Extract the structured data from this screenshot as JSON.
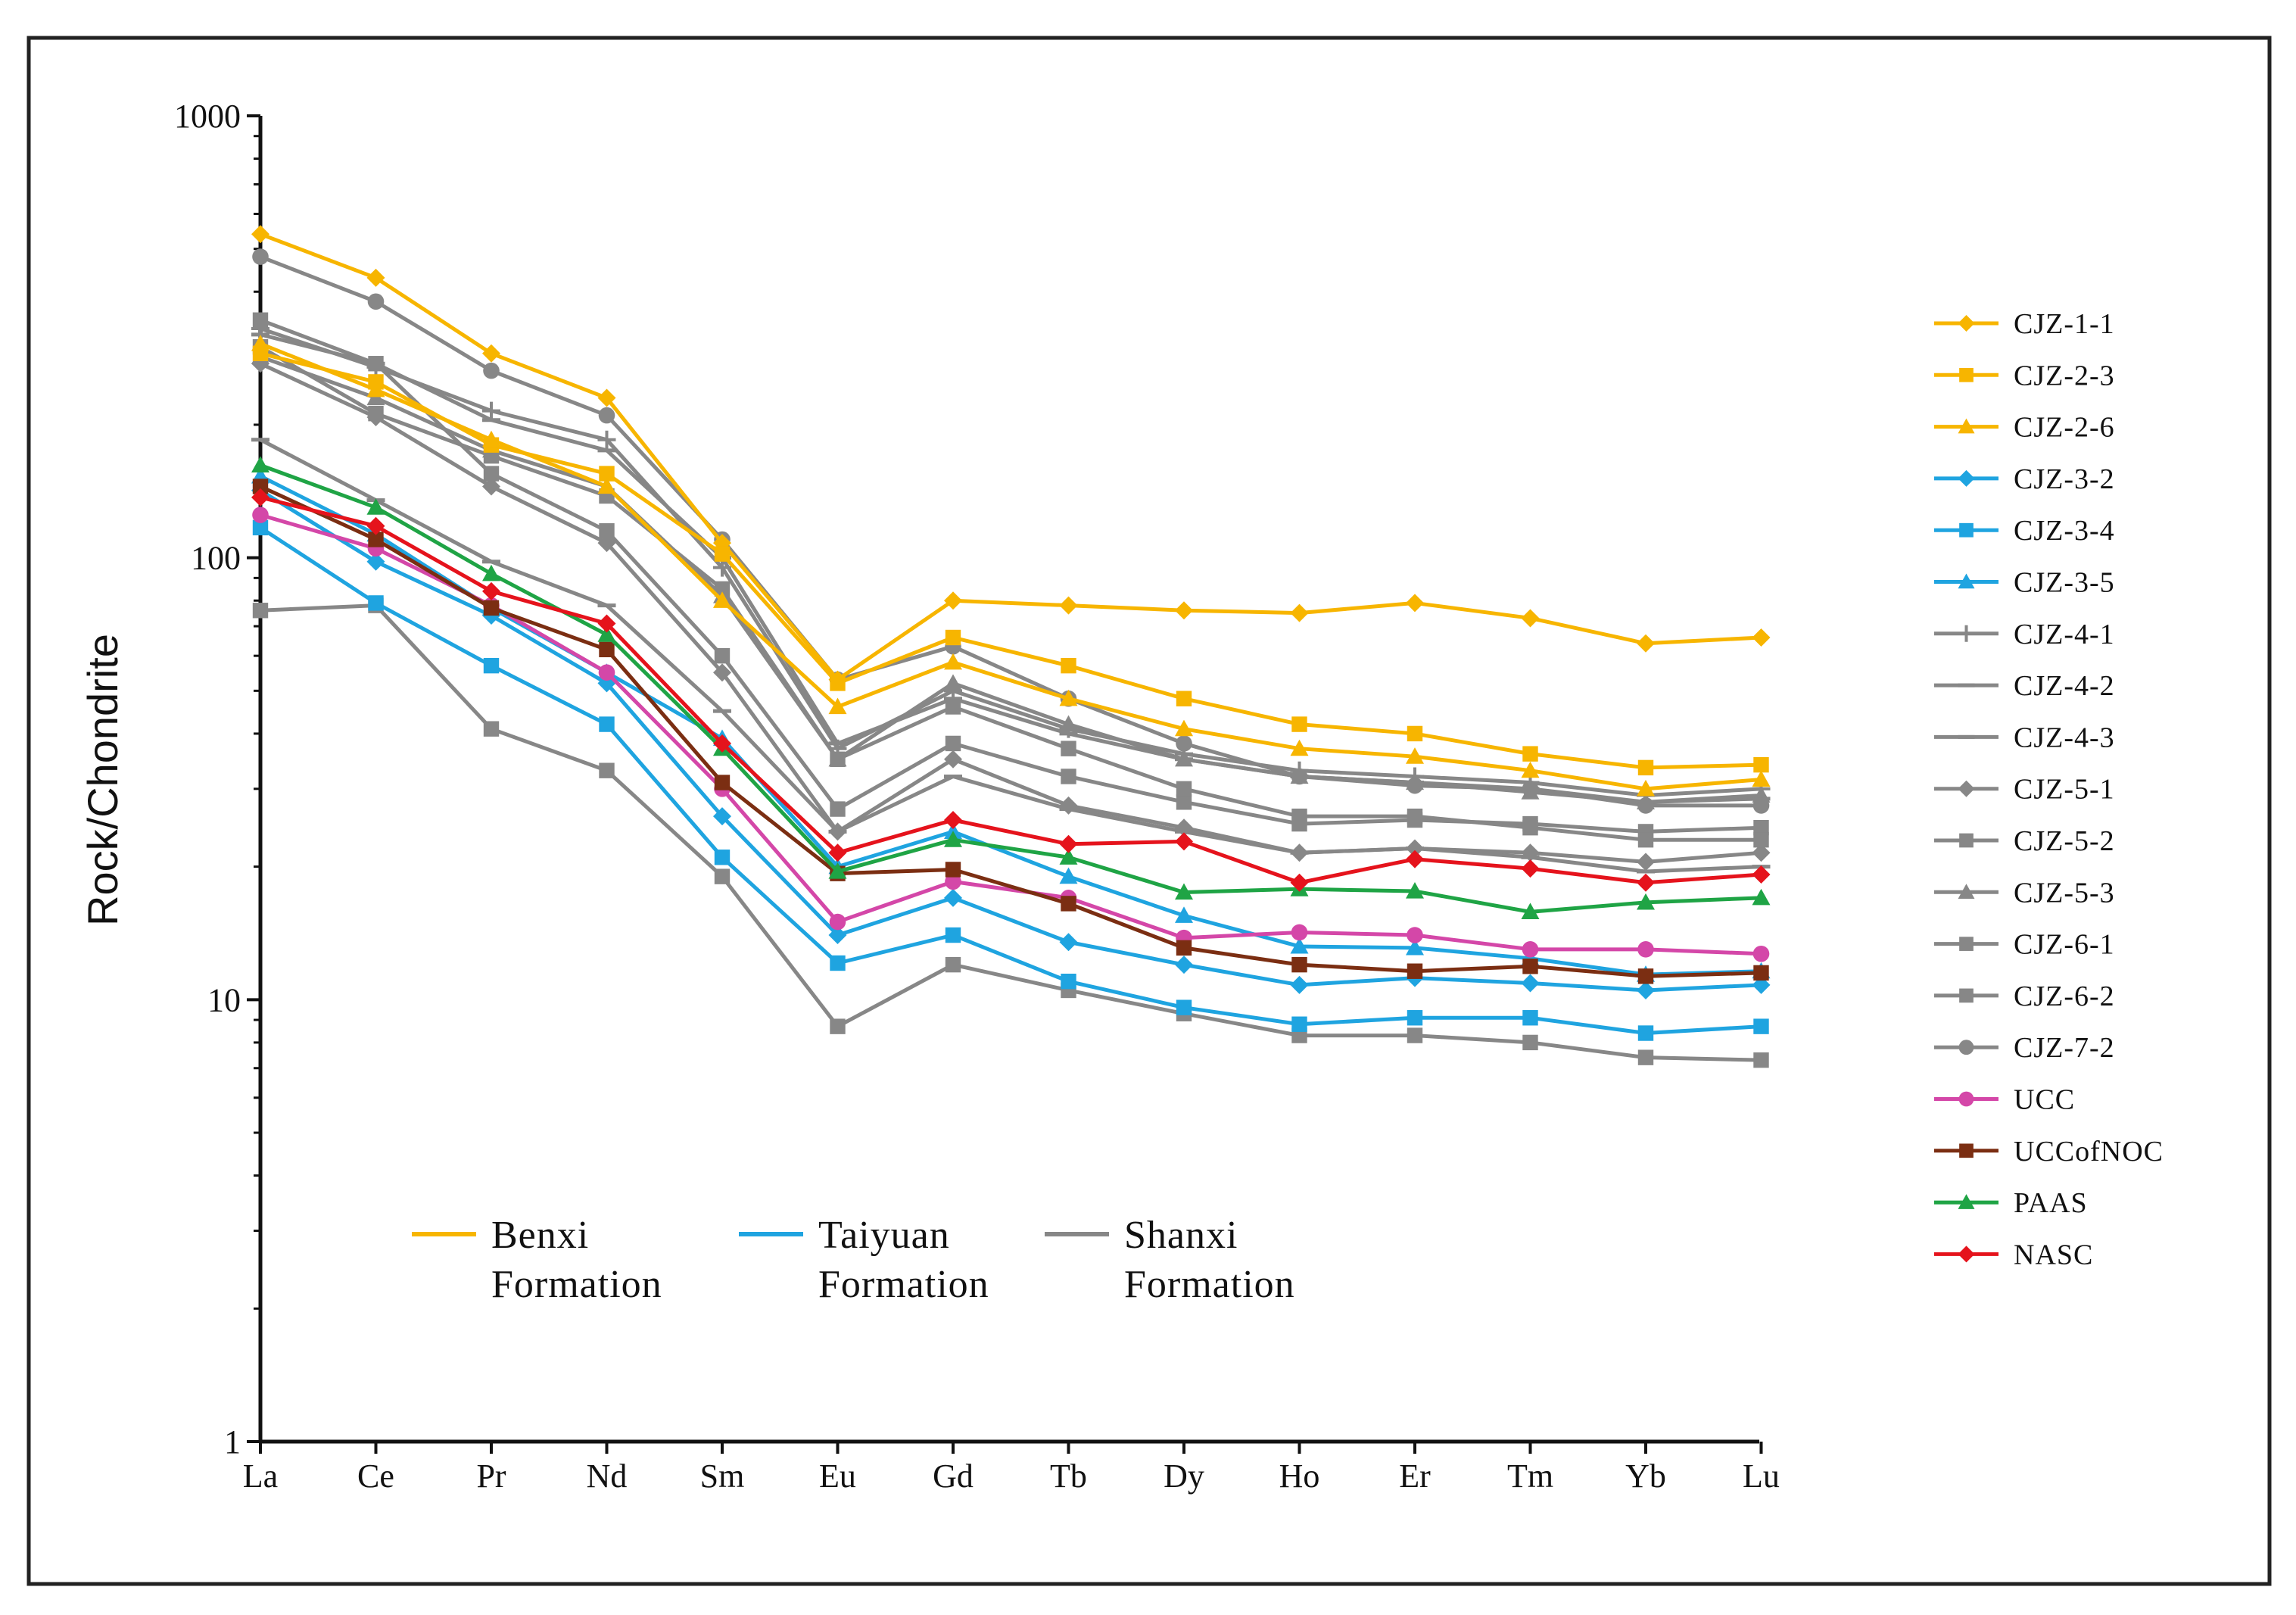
{
  "chart_data": {
    "type": "line",
    "title": "",
    "xlabel": "",
    "ylabel": "Rock/Chondrite",
    "yscale": "log",
    "ylim": [
      1,
      1000
    ],
    "yticks": [
      {
        "value": 1,
        "label": "1"
      },
      {
        "value": 10,
        "label": "10"
      },
      {
        "value": 100,
        "label": "100"
      },
      {
        "value": 1000,
        "label": "1000"
      }
    ],
    "categories": [
      "La",
      "Ce",
      "Pr",
      "Nd",
      "Sm",
      "Eu",
      "Gd",
      "Tb",
      "Dy",
      "Ho",
      "Er",
      "Tm",
      "Yb",
      "Lu"
    ],
    "legend_position": "right",
    "series": [
      {
        "name": "CJZ-1-1",
        "color": "#F7B500",
        "marker": "diamond",
        "values": [
          540,
          430,
          290,
          230,
          108,
          53,
          80,
          78,
          76,
          75,
          79,
          73,
          64,
          66
        ]
      },
      {
        "name": "CJZ-2-3",
        "color": "#F7B500",
        "marker": "square",
        "values": [
          290,
          250,
          180,
          155,
          102,
          52,
          66,
          57,
          48,
          42,
          40,
          36,
          33.5,
          34
        ]
      },
      {
        "name": "CJZ-2-6",
        "color": "#F7B500",
        "marker": "triangle",
        "values": [
          305,
          240,
          185,
          145,
          80,
          46,
          58,
          48,
          41,
          37,
          35.5,
          33,
          30,
          31.5
        ]
      },
      {
        "name": "CJZ-3-2",
        "color": "#1FA4E0",
        "marker": "diamond",
        "values": [
          142,
          98,
          74,
          52,
          26,
          14,
          17,
          13.5,
          12,
          10.8,
          11.2,
          10.9,
          10.5,
          10.8
        ]
      },
      {
        "name": "CJZ-3-4",
        "color": "#1FA4E0",
        "marker": "square",
        "values": [
          117,
          79,
          57,
          42,
          21,
          12.1,
          14,
          11,
          9.6,
          8.8,
          9.1,
          9.1,
          8.4,
          8.7
        ]
      },
      {
        "name": "CJZ-3-5",
        "color": "#1FA4E0",
        "marker": "triangle",
        "values": [
          153,
          113,
          77,
          55,
          39,
          20,
          24,
          19,
          15.5,
          13.2,
          13.1,
          12.4,
          11.4,
          11.6
        ]
      },
      {
        "name": "CJZ-4-1",
        "color": "#878787",
        "marker": "plus",
        "values": [
          330,
          270,
          215,
          185,
          95,
          37,
          50,
          41,
          36,
          33,
          32,
          31,
          29,
          30
        ]
      },
      {
        "name": "CJZ-4-2",
        "color": "#878787",
        "marker": "dash",
        "values": [
          320,
          275,
          205,
          175,
          100,
          38,
          48,
          40,
          35,
          32,
          31,
          30,
          28,
          28.5
        ]
      },
      {
        "name": "CJZ-4-3",
        "color": "#878787",
        "marker": "dash",
        "values": [
          185,
          135,
          98,
          78,
          45,
          24,
          32,
          27,
          24,
          21.5,
          22,
          21,
          19.5,
          20
        ]
      },
      {
        "name": "CJZ-5-1",
        "color": "#878787",
        "marker": "diamond",
        "values": [
          275,
          208,
          145,
          108,
          55,
          24,
          35,
          27.5,
          24.5,
          21.5,
          22,
          21.5,
          20.5,
          21.5
        ]
      },
      {
        "name": "CJZ-5-2",
        "color": "#878787",
        "marker": "square",
        "values": [
          345,
          275,
          155,
          115,
          60,
          27,
          38,
          32,
          28,
          25,
          25.5,
          25,
          24,
          24.5
        ]
      },
      {
        "name": "CJZ-5-3",
        "color": "#878787",
        "marker": "triangle",
        "values": [
          285,
          230,
          175,
          145,
          82,
          35,
          52,
          42,
          35,
          32,
          31,
          29.5,
          28,
          29
        ]
      },
      {
        "name": "CJZ-6-1",
        "color": "#878787",
        "marker": "square",
        "values": [
          300,
          212,
          170,
          138,
          85,
          35,
          46,
          37,
          30,
          26,
          26,
          24.5,
          23,
          23
        ]
      },
      {
        "name": "CJZ-6-2",
        "color": "#878787",
        "marker": "square",
        "values": [
          76,
          78,
          41,
          33,
          19,
          8.7,
          12,
          10.5,
          9.3,
          8.3,
          8.3,
          8,
          7.4,
          7.3
        ]
      },
      {
        "name": "CJZ-7-2",
        "color": "#878787",
        "marker": "circle",
        "values": [
          480,
          380,
          265,
          210,
          110,
          53,
          63,
          48,
          38,
          32,
          30.5,
          30,
          27.5,
          27.5
        ]
      },
      {
        "name": "UCC",
        "color": "#D447A8",
        "marker": "circle",
        "values": [
          125,
          105,
          78,
          55,
          30,
          15,
          18.5,
          17,
          13.8,
          14.2,
          14,
          13,
          13,
          12.7
        ]
      },
      {
        "name": "UCCofNOC",
        "color": "#7B2E12",
        "marker": "square",
        "values": [
          145,
          110,
          77,
          62,
          31,
          19.3,
          19.7,
          16.5,
          13.1,
          12,
          11.6,
          11.9,
          11.3,
          11.5
        ]
      },
      {
        "name": "PAAS",
        "color": "#1FA445",
        "marker": "triangle",
        "values": [
          162,
          130,
          92,
          67,
          37,
          19.5,
          23,
          21,
          17.5,
          17.8,
          17.6,
          15.8,
          16.6,
          17
        ]
      },
      {
        "name": "NASC",
        "color": "#E5131C",
        "marker": "diamond",
        "values": [
          137,
          118,
          84,
          71,
          38,
          21.5,
          25.5,
          22.5,
          22.8,
          18.4,
          20.8,
          19.8,
          18.4,
          19.2
        ]
      }
    ],
    "group_legend": [
      {
        "line1": "Benxi",
        "line2": "Formation",
        "color": "#F7B500"
      },
      {
        "line1": "Taiyuan",
        "line2": "Formation",
        "color": "#1FA4E0"
      },
      {
        "line1": "Shanxi",
        "line2": "Formation",
        "color": "#878787"
      }
    ]
  }
}
